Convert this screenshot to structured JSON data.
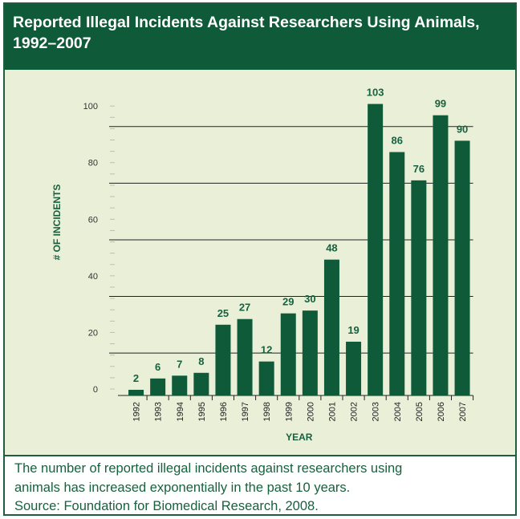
{
  "chart_data": {
    "type": "bar",
    "title": "Reported Illegal Incidents Against Researchers Using Animals, 1992–2007",
    "title_lines": [
      "Reported Illegal Incidents Against Researchers Using Animals,",
      "1992–2007"
    ],
    "xlabel": "YEAR",
    "ylabel": "# OF INCIDENTS",
    "categories": [
      "1992",
      "1993",
      "1994",
      "1995",
      "1996",
      "1997",
      "1998",
      "1999",
      "2000",
      "2001",
      "2002",
      "2003",
      "2004",
      "2005",
      "2006",
      "2007"
    ],
    "values": [
      2,
      6,
      7,
      8,
      25,
      27,
      12,
      29,
      30,
      48,
      19,
      103,
      86,
      76,
      99,
      90
    ],
    "y_tick_labels": [
      "0",
      "20",
      "40",
      "60",
      "80",
      "100"
    ],
    "data_labels": true,
    "grid": true,
    "colors": {
      "bar": "#0f5b39",
      "background": "#eaf0d8",
      "title_bg": "#0f5b39",
      "text": "#17613f"
    }
  },
  "caption": {
    "lines": [
      "The number of reported illegal incidents against researchers using",
      "animals has increased exponentially in the past 10 years.",
      "Source: Foundation for Biomedical Research, 2008."
    ]
  }
}
